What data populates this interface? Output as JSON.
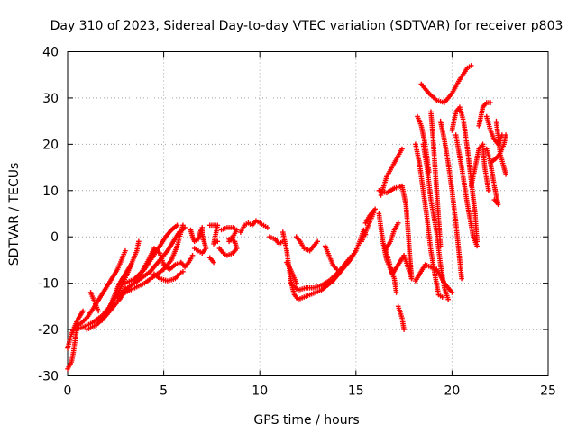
{
  "chart_data": {
    "type": "scatter",
    "title": "Day 310 of 2023, Sidereal Day-to-day VTEC variation (SDTVAR) for receiver p803",
    "xlabel": "GPS time / hours",
    "ylabel": "SDTVAR / TECUs",
    "xlim": [
      0,
      25
    ],
    "ylim": [
      -30,
      40
    ],
    "xticks": [
      "0",
      "5",
      "10",
      "15",
      "20",
      "25"
    ],
    "yticks": [
      "40",
      "30",
      "20",
      "10",
      "0",
      "-10",
      "-20",
      "-30"
    ],
    "grid": true,
    "marker": "+",
    "color": "#ff0000",
    "tracks": [
      [
        [
          0.0,
          -28.5
        ],
        [
          0.2,
          -27
        ],
        [
          0.3,
          -25
        ],
        [
          0.4,
          -22
        ],
        [
          0.5,
          -19
        ]
      ],
      [
        [
          0.0,
          -24
        ],
        [
          0.2,
          -21
        ],
        [
          0.5,
          -18
        ],
        [
          0.8,
          -16
        ]
      ],
      [
        [
          0.3,
          -20
        ],
        [
          0.8,
          -19.5
        ],
        [
          1.3,
          -18.5
        ],
        [
          1.8,
          -17
        ],
        [
          2.2,
          -15
        ],
        [
          2.7,
          -11.5
        ],
        [
          3.1,
          -8
        ],
        [
          3.4,
          -5
        ],
        [
          3.6,
          -3
        ],
        [
          3.7,
          -1
        ]
      ],
      [
        [
          0.6,
          -19
        ],
        [
          1.0,
          -17.5
        ],
        [
          1.4,
          -15
        ],
        [
          1.7,
          -13
        ],
        [
          2.0,
          -11
        ],
        [
          2.3,
          -9
        ],
        [
          2.6,
          -7
        ],
        [
          2.8,
          -5
        ],
        [
          3.0,
          -3
        ]
      ],
      [
        [
          1.0,
          -20
        ],
        [
          1.5,
          -19
        ],
        [
          2.0,
          -17
        ],
        [
          2.4,
          -15
        ],
        [
          2.8,
          -13
        ],
        [
          3.0,
          -11
        ]
      ],
      [
        [
          1.2,
          -12
        ],
        [
          1.4,
          -14
        ],
        [
          1.6,
          -16
        ]
      ],
      [
        [
          1.8,
          -18
        ],
        [
          2.1,
          -16
        ],
        [
          2.4,
          -13
        ],
        [
          2.7,
          -10
        ],
        [
          3.0,
          -8
        ],
        [
          3.3,
          -6
        ]
      ],
      [
        [
          2.6,
          -13
        ],
        [
          3.0,
          -12
        ],
        [
          3.5,
          -11
        ],
        [
          4.0,
          -10
        ],
        [
          4.5,
          -8.5
        ],
        [
          5.0,
          -7
        ],
        [
          5.4,
          -5
        ],
        [
          5.7,
          -2
        ],
        [
          5.9,
          1
        ],
        [
          6.0,
          2.5
        ]
      ],
      [
        [
          2.8,
          -12
        ],
        [
          3.3,
          -10.5
        ],
        [
          3.8,
          -9
        ],
        [
          4.3,
          -7.5
        ],
        [
          4.8,
          -5
        ],
        [
          5.2,
          -3
        ],
        [
          5.5,
          -1
        ],
        [
          5.8,
          1
        ],
        [
          6.1,
          2
        ]
      ],
      [
        [
          3.0,
          -10
        ],
        [
          3.5,
          -9
        ],
        [
          4.0,
          -7
        ],
        [
          4.4,
          -4.5
        ],
        [
          4.8,
          -2
        ],
        [
          5.1,
          0
        ],
        [
          5.4,
          1.5
        ],
        [
          5.7,
          2.5
        ]
      ],
      [
        [
          3.4,
          -9.5
        ],
        [
          3.8,
          -8
        ],
        [
          4.2,
          -5
        ],
        [
          4.5,
          -2.5
        ],
        [
          4.8,
          -3.5
        ],
        [
          5.0,
          -6
        ],
        [
          5.3,
          -7
        ],
        [
          5.6,
          -6
        ],
        [
          5.9,
          -5.5
        ],
        [
          6.1,
          -6.5
        ],
        [
          6.3,
          -5.5
        ],
        [
          6.5,
          -4
        ]
      ],
      [
        [
          4.5,
          -8
        ],
        [
          4.8,
          -9
        ],
        [
          5.2,
          -9.5
        ],
        [
          5.6,
          -9
        ],
        [
          5.8,
          -8
        ],
        [
          6.0,
          -7.5
        ]
      ],
      [
        [
          6.4,
          1.5
        ],
        [
          6.5,
          0
        ],
        [
          6.6,
          -1
        ],
        [
          6.8,
          -0.5
        ],
        [
          6.9,
          1
        ],
        [
          7.0,
          2
        ],
        [
          7.0,
          0.5
        ],
        [
          7.1,
          -1
        ],
        [
          7.2,
          -2.5
        ],
        [
          7.0,
          -3.5
        ],
        [
          6.8,
          -3
        ],
        [
          6.6,
          -2.5
        ]
      ],
      [
        [
          7.4,
          -4.5
        ],
        [
          7.6,
          -5.5
        ]
      ],
      [
        [
          7.4,
          2.5
        ],
        [
          7.8,
          2.5
        ],
        [
          7.6,
          -1.5
        ],
        [
          7.8,
          -1
        ]
      ],
      [
        [
          8.0,
          1.5
        ],
        [
          8.3,
          2
        ],
        [
          8.6,
          2
        ],
        [
          8.8,
          1.5
        ],
        [
          8.6,
          0
        ],
        [
          8.4,
          -0.5
        ],
        [
          8.7,
          -1
        ],
        [
          8.8,
          -2.5
        ],
        [
          8.6,
          -3.5
        ],
        [
          8.3,
          -4
        ],
        [
          8.1,
          -3.5
        ],
        [
          7.9,
          -2.5
        ]
      ],
      [
        [
          8.4,
          -1
        ],
        [
          8.6,
          0
        ]
      ],
      [
        [
          9.0,
          1
        ],
        [
          9.2,
          2.5
        ],
        [
          9.4,
          3
        ],
        [
          9.6,
          2.5
        ],
        [
          9.8,
          3.5
        ],
        [
          10.0,
          3
        ],
        [
          10.2,
          2.5
        ],
        [
          10.4,
          2
        ]
      ],
      [
        [
          10.5,
          0
        ],
        [
          10.8,
          -0.5
        ],
        [
          11.0,
          -1.5
        ],
        [
          11.2,
          -1
        ]
      ],
      [
        [
          11.2,
          1
        ],
        [
          11.4,
          -3
        ],
        [
          11.5,
          -6
        ],
        [
          11.6,
          -9
        ],
        [
          11.7,
          -11
        ],
        [
          11.8,
          -12.5
        ],
        [
          12.0,
          -13.5
        ],
        [
          12.3,
          -13
        ],
        [
          12.6,
          -12.5
        ],
        [
          12.9,
          -12
        ],
        [
          13.2,
          -11.5
        ],
        [
          13.5,
          -10.5
        ],
        [
          13.8,
          -9.5
        ],
        [
          14.1,
          -8
        ],
        [
          14.4,
          -6.5
        ],
        [
          14.7,
          -5
        ],
        [
          15.0,
          -3
        ],
        [
          15.2,
          -1
        ]
      ],
      [
        [
          11.6,
          -10
        ],
        [
          12.0,
          -11.5
        ],
        [
          12.4,
          -11
        ],
        [
          12.8,
          -11
        ],
        [
          13.2,
          -10.5
        ],
        [
          13.6,
          -9.5
        ],
        [
          14.0,
          -8
        ],
        [
          14.4,
          -6
        ],
        [
          14.8,
          -4
        ]
      ],
      [
        [
          11.9,
          0
        ],
        [
          12.1,
          -1
        ],
        [
          12.3,
          -2.5
        ],
        [
          12.6,
          -3
        ],
        [
          12.8,
          -2
        ],
        [
          13.0,
          -1
        ]
      ],
      [
        [
          11.4,
          -5.5
        ],
        [
          11.6,
          -7
        ],
        [
          11.9,
          -10
        ]
      ],
      [
        [
          13.4,
          -2
        ],
        [
          13.6,
          -4
        ],
        [
          13.8,
          -6
        ],
        [
          14.0,
          -7
        ]
      ],
      [
        [
          15.2,
          -1
        ],
        [
          15.4,
          1.5
        ],
        [
          15.5,
          0.5
        ]
      ],
      [
        [
          15.3,
          -1
        ],
        [
          15.6,
          2
        ],
        [
          15.8,
          4
        ],
        [
          16.0,
          6
        ],
        [
          15.7,
          4.5
        ],
        [
          15.5,
          3
        ]
      ],
      [
        [
          16.2,
          5
        ],
        [
          16.3,
          2
        ],
        [
          16.4,
          -1
        ],
        [
          16.5,
          -3
        ],
        [
          16.6,
          -5
        ],
        [
          16.8,
          -7
        ],
        [
          17.0,
          -9
        ],
        [
          17.1,
          -12
        ]
      ],
      [
        [
          16.5,
          -3
        ],
        [
          16.8,
          -1
        ],
        [
          17.0,
          1.5
        ],
        [
          17.2,
          3
        ]
      ],
      [
        [
          16.3,
          9
        ],
        [
          16.6,
          13
        ],
        [
          17.0,
          16
        ],
        [
          17.4,
          19
        ]
      ],
      [
        [
          16.2,
          10
        ],
        [
          16.6,
          9.5
        ],
        [
          17.0,
          10.5
        ],
        [
          17.4,
          11
        ]
      ],
      [
        [
          16.5,
          -2
        ],
        [
          16.7,
          -5
        ],
        [
          16.9,
          -8
        ],
        [
          17.2,
          -6
        ],
        [
          17.5,
          -4
        ],
        [
          17.7,
          -6.5
        ],
        [
          17.9,
          -9
        ]
      ],
      [
        [
          17.2,
          -15
        ],
        [
          17.4,
          -17.5
        ],
        [
          17.5,
          -20
        ]
      ],
      [
        [
          17.4,
          11
        ],
        [
          17.6,
          7
        ],
        [
          17.7,
          2
        ],
        [
          17.8,
          -4
        ],
        [
          17.9,
          -9
        ],
        [
          17.8,
          -6
        ]
      ],
      [
        [
          18.1,
          20
        ],
        [
          18.3,
          16
        ],
        [
          18.5,
          10
        ],
        [
          18.7,
          4
        ],
        [
          18.9,
          -3
        ],
        [
          19.1,
          -8
        ],
        [
          19.3,
          -12.5
        ],
        [
          19.5,
          -13
        ]
      ],
      [
        [
          18.5,
          20
        ],
        [
          18.7,
          15
        ],
        [
          18.9,
          8
        ],
        [
          19.2,
          1
        ],
        [
          19.4,
          -6
        ],
        [
          19.6,
          -11
        ],
        [
          19.8,
          -13.5
        ]
      ],
      [
        [
          18.1,
          -9.5
        ],
        [
          18.6,
          -6
        ],
        [
          19.2,
          -7
        ],
        [
          19.6,
          -10
        ],
        [
          20.0,
          -12
        ]
      ],
      [
        [
          18.4,
          33
        ],
        [
          18.8,
          31
        ],
        [
          19.2,
          29.5
        ],
        [
          19.6,
          29
        ],
        [
          20.0,
          31
        ],
        [
          20.4,
          34
        ],
        [
          20.8,
          36.5
        ],
        [
          21.0,
          37
        ]
      ],
      [
        [
          18.2,
          26
        ],
        [
          18.4,
          24
        ],
        [
          18.6,
          20
        ],
        [
          18.8,
          14
        ]
      ],
      [
        [
          18.9,
          27
        ],
        [
          19.0,
          22
        ],
        [
          19.1,
          16
        ],
        [
          19.2,
          10
        ],
        [
          19.3,
          4
        ],
        [
          19.4,
          -2
        ]
      ],
      [
        [
          19.4,
          25
        ],
        [
          19.6,
          21
        ],
        [
          19.8,
          16
        ],
        [
          20.0,
          10
        ],
        [
          20.2,
          3
        ],
        [
          20.4,
          -5
        ],
        [
          20.5,
          -9
        ]
      ],
      [
        [
          20.0,
          23
        ],
        [
          20.2,
          27
        ],
        [
          20.4,
          28
        ],
        [
          20.6,
          25
        ],
        [
          20.8,
          19
        ],
        [
          21.0,
          12
        ],
        [
          21.2,
          5
        ],
        [
          21.3,
          -1
        ]
      ],
      [
        [
          20.2,
          22
        ],
        [
          20.5,
          15
        ],
        [
          20.8,
          7
        ],
        [
          21.1,
          0
        ],
        [
          21.3,
          -2
        ]
      ],
      [
        [
          21.0,
          11
        ],
        [
          21.2,
          15
        ],
        [
          21.4,
          19
        ],
        [
          21.6,
          20
        ],
        [
          21.7,
          15
        ],
        [
          21.9,
          10
        ]
      ],
      [
        [
          21.4,
          24
        ],
        [
          21.6,
          28
        ],
        [
          21.8,
          29
        ],
        [
          22.0,
          29
        ]
      ],
      [
        [
          21.8,
          19
        ],
        [
          22.0,
          16
        ],
        [
          22.2,
          11
        ],
        [
          22.4,
          7
        ],
        [
          22.2,
          8
        ]
      ],
      [
        [
          21.8,
          26
        ],
        [
          22.0,
          23
        ],
        [
          22.2,
          21
        ],
        [
          22.4,
          20
        ],
        [
          22.6,
          22
        ]
      ],
      [
        [
          22.0,
          16
        ],
        [
          22.3,
          17
        ],
        [
          22.5,
          18
        ],
        [
          22.7,
          15
        ],
        [
          22.8,
          13.5
        ]
      ],
      [
        [
          22.3,
          25
        ],
        [
          22.5,
          18
        ],
        [
          22.7,
          20
        ],
        [
          22.8,
          22
        ]
      ]
    ]
  }
}
